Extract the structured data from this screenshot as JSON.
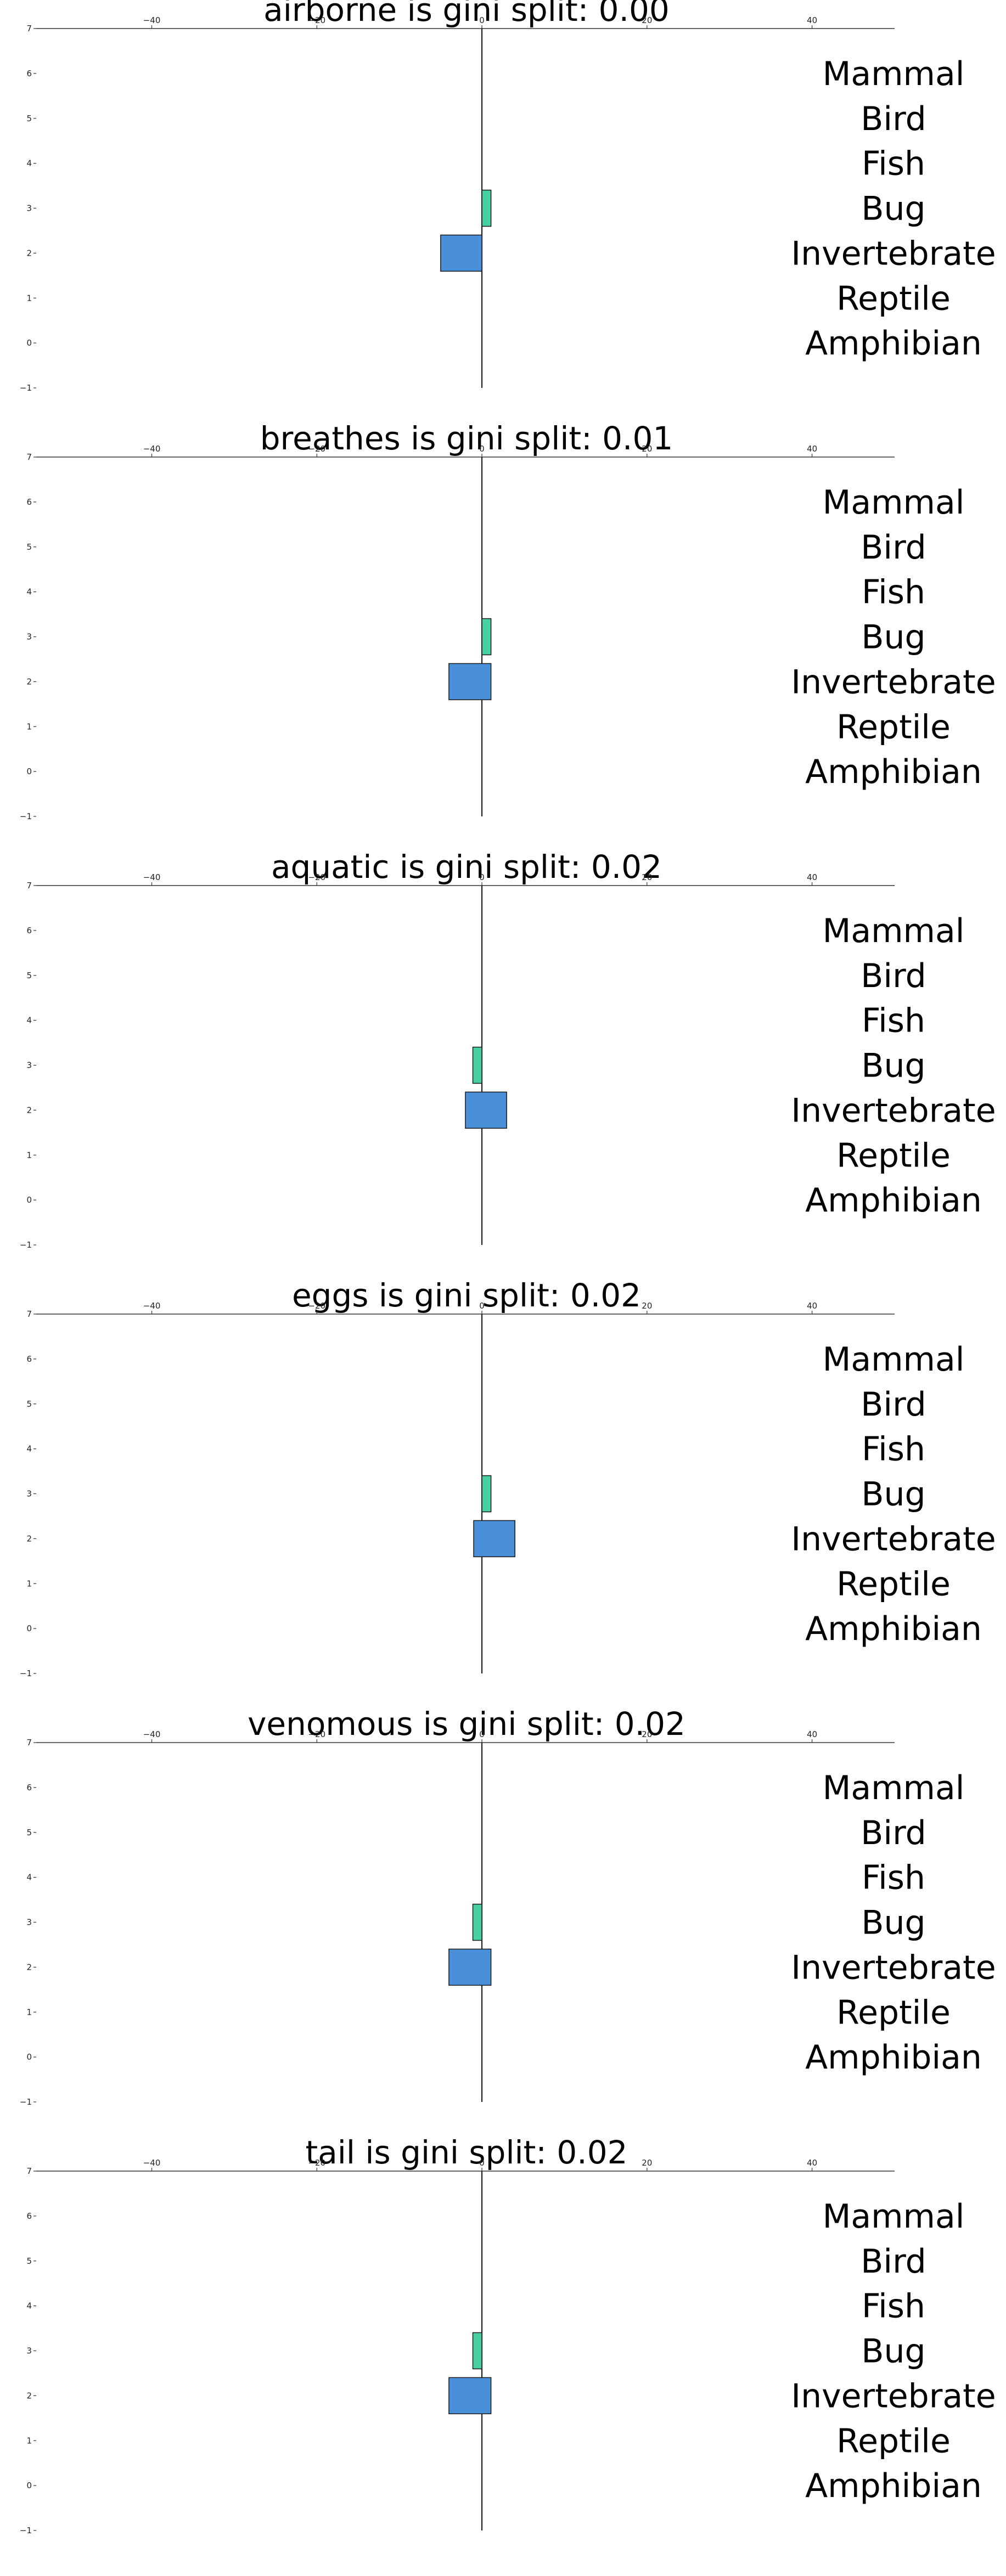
{
  "colors": {
    "bug": "#48d1a0",
    "invertebrate": "#4a90d9",
    "edge": "#1a1a1a"
  },
  "classes": [
    "Mammal",
    "Bird",
    "Fish",
    "Bug",
    "Invertebrate",
    "Reptile",
    "Amphibian"
  ],
  "chart_data": [
    {
      "type": "bar",
      "orientation": "horizontal",
      "title": "airborne is gini split: 0.00",
      "xlim": [
        -54,
        50
      ],
      "ylim": [
        -1,
        7
      ],
      "xticks": [
        "−40",
        "−20",
        "0",
        "20",
        "40"
      ],
      "yticks": [
        "7",
        "6",
        "5",
        "4",
        "3",
        "2",
        "1",
        "0",
        "−1"
      ],
      "bars": [
        {
          "class": "Bug",
          "y": 3,
          "from": 0,
          "to": 1.1
        },
        {
          "class": "Invertebrate",
          "y": 2,
          "from": -5,
          "to": 0
        }
      ]
    },
    {
      "type": "bar",
      "orientation": "horizontal",
      "title": "breathes is gini split: 0.01",
      "xlim": [
        -54,
        50
      ],
      "ylim": [
        -1,
        7
      ],
      "xticks": [
        "−40",
        "−20",
        "0",
        "20",
        "40"
      ],
      "yticks": [
        "7",
        "6",
        "5",
        "4",
        "3",
        "2",
        "1",
        "0",
        "−1"
      ],
      "bars": [
        {
          "class": "Bug",
          "y": 3,
          "from": 0,
          "to": 1.1
        },
        {
          "class": "Invertebrate",
          "y": 2,
          "from": -4,
          "to": 1.1
        }
      ]
    },
    {
      "type": "bar",
      "orientation": "horizontal",
      "title": "aquatic is gini split: 0.02",
      "xlim": [
        -54,
        50
      ],
      "ylim": [
        -1,
        7
      ],
      "xticks": [
        "−40",
        "−20",
        "0",
        "20",
        "40"
      ],
      "yticks": [
        "7",
        "6",
        "5",
        "4",
        "3",
        "2",
        "1",
        "0",
        "−1"
      ],
      "bars": [
        {
          "class": "Bug",
          "y": 3,
          "from": -1.1,
          "to": 0
        },
        {
          "class": "Invertebrate",
          "y": 2,
          "from": -2,
          "to": 3
        }
      ]
    },
    {
      "type": "bar",
      "orientation": "horizontal",
      "title": "eggs is gini split: 0.02",
      "xlim": [
        -54,
        50
      ],
      "ylim": [
        -1,
        7
      ],
      "xticks": [
        "−40",
        "−20",
        "0",
        "20",
        "40"
      ],
      "yticks": [
        "7",
        "6",
        "5",
        "4",
        "3",
        "2",
        "1",
        "0",
        "−1"
      ],
      "bars": [
        {
          "class": "Bug",
          "y": 3,
          "from": 0,
          "to": 1.1
        },
        {
          "class": "Invertebrate",
          "y": 2,
          "from": -1,
          "to": 4
        }
      ]
    },
    {
      "type": "bar",
      "orientation": "horizontal",
      "title": "venomous is gini split: 0.02",
      "xlim": [
        -54,
        50
      ],
      "ylim": [
        -1,
        7
      ],
      "xticks": [
        "−40",
        "−20",
        "0",
        "20",
        "40"
      ],
      "yticks": [
        "7",
        "6",
        "5",
        "4",
        "3",
        "2",
        "1",
        "0",
        "−1"
      ],
      "bars": [
        {
          "class": "Bug",
          "y": 3,
          "from": -1.1,
          "to": 0
        },
        {
          "class": "Invertebrate",
          "y": 2,
          "from": -4,
          "to": 1.1
        }
      ]
    },
    {
      "type": "bar",
      "orientation": "horizontal",
      "title": "tail is gini split: 0.02",
      "xlim": [
        -54,
        50
      ],
      "ylim": [
        -1,
        7
      ],
      "xticks": [
        "−40",
        "−20",
        "0",
        "20",
        "40"
      ],
      "yticks": [
        "7",
        "6",
        "5",
        "4",
        "3",
        "2",
        "1",
        "0",
        "−1"
      ],
      "bars": [
        {
          "class": "Bug",
          "y": 3,
          "from": -1.1,
          "to": 0
        },
        {
          "class": "Invertebrate",
          "y": 2,
          "from": -4,
          "to": 1.1
        }
      ]
    }
  ]
}
